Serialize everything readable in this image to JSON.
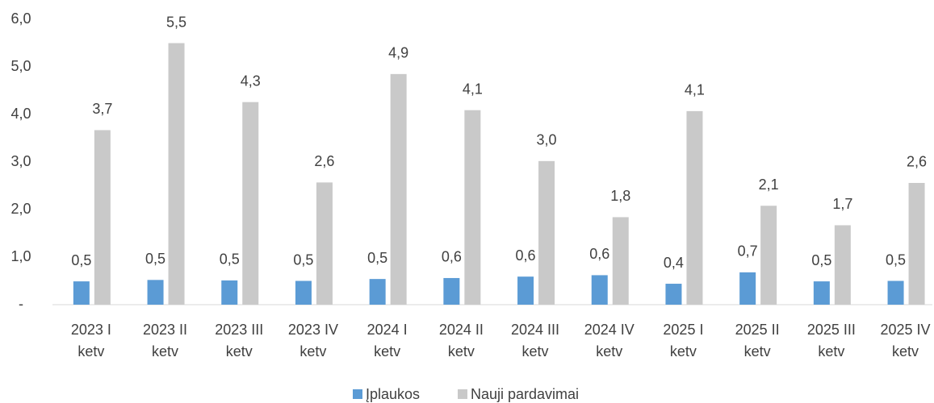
{
  "chart_data": {
    "type": "bar",
    "categories": [
      "2023 I ketv",
      "2023 II ketv",
      "2023 III ketv",
      "2023 IV ketv",
      "2024 I ketv",
      "2024 II ketv",
      "2024 III ketv",
      "2024 IV ketv",
      "2025 I ketv",
      "2025 II ketv",
      "2025 III ketv",
      "2025 IV ketv"
    ],
    "series": [
      {
        "name": "Įplaukos",
        "color": "#5b9bd5",
        "values": [
          0.49,
          0.52,
          0.51,
          0.5,
          0.54,
          0.56,
          0.59,
          0.62,
          0.44,
          0.68,
          0.49,
          0.5
        ],
        "value_labels": [
          "0,5",
          "0,5",
          "0,5",
          "0,5",
          "0,5",
          "0,6",
          "0,6",
          "0,6",
          "0,4",
          "0,7",
          "0,5",
          "0,5"
        ]
      },
      {
        "name": "Nauji pardavimai",
        "color": "#c9c9c9",
        "values": [
          3.67,
          5.5,
          4.26,
          2.57,
          4.85,
          4.09,
          3.02,
          1.84,
          4.07,
          2.08,
          1.67,
          2.56
        ],
        "value_labels": [
          "3,7",
          "5,5",
          "4,3",
          "2,6",
          "4,9",
          "4,1",
          "3,0",
          "1,8",
          "4,1",
          "2,1",
          "1,7",
          "2,6"
        ]
      }
    ],
    "ylim": [
      0,
      6
    ],
    "yticks": [
      {
        "value": 0,
        "label": "-"
      },
      {
        "value": 1,
        "label": "1,0"
      },
      {
        "value": 2,
        "label": "2,0"
      },
      {
        "value": 3,
        "label": "3,0"
      },
      {
        "value": 4,
        "label": "4,0"
      },
      {
        "value": 5,
        "label": "5,0"
      },
      {
        "value": 6,
        "label": "6,0"
      }
    ],
    "grid": false,
    "legend": "bottom"
  }
}
